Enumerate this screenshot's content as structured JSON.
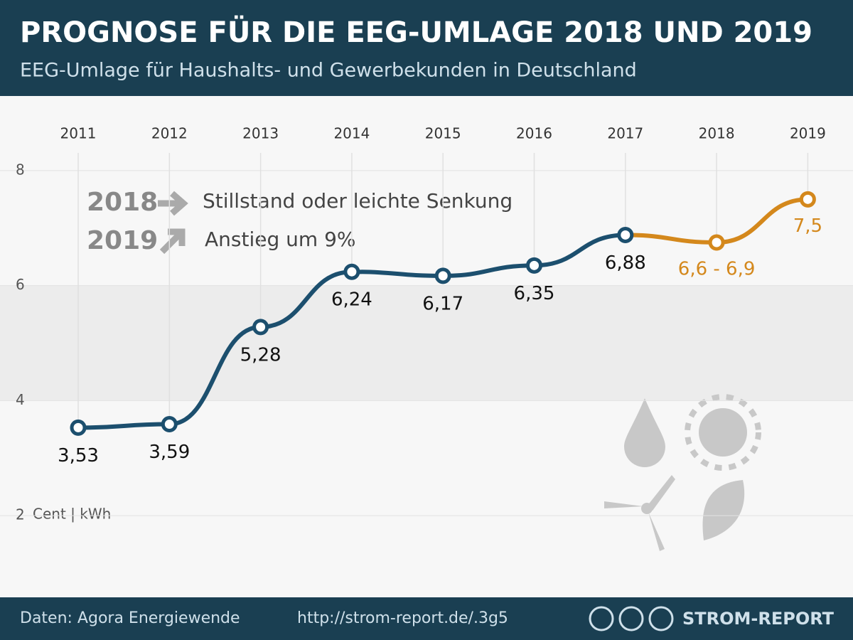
{
  "chart_data": {
    "type": "line",
    "title": "PROGNOSE FÜR DIE EEG-UMLAGE 2018 UND 2019",
    "subtitle": "EEG-Umlage für Haushalts- und Gewerbekunden in Deutschland",
    "y_label": "Cent | kWh",
    "categories": [
      "2011",
      "2012",
      "2013",
      "2014",
      "2015",
      "2016",
      "2017",
      "2018",
      "2019"
    ],
    "series": [
      {
        "color": "#1c4f6e",
        "values": [
          3.53,
          3.59,
          5.28,
          6.24,
          6.17,
          6.35,
          6.88,
          null,
          null
        ],
        "value_labels": [
          "3,53",
          "3,59",
          "5,28",
          "6,24",
          "6,17",
          "6,35",
          "6,88",
          null,
          null
        ]
      },
      {
        "color": "#d4881c",
        "values": [
          null,
          null,
          null,
          null,
          null,
          null,
          6.88,
          6.75,
          7.5
        ],
        "value_labels": [
          null,
          null,
          null,
          null,
          null,
          null,
          null,
          "6,6 - 6,9",
          "7,5"
        ]
      }
    ],
    "ylim": [
      1,
      9
    ],
    "yticks": [
      2,
      4,
      6,
      8
    ],
    "grid": true,
    "annotations": [
      {
        "year": "2018",
        "text": "Stillstand oder leichte Senkung"
      },
      {
        "year": "2019",
        "text": "Anstieg um 9%"
      }
    ],
    "source": "Daten: Agora Energiewende",
    "url": "http://strom-report.de/.3g5",
    "brand": "STROM-REPORT"
  }
}
